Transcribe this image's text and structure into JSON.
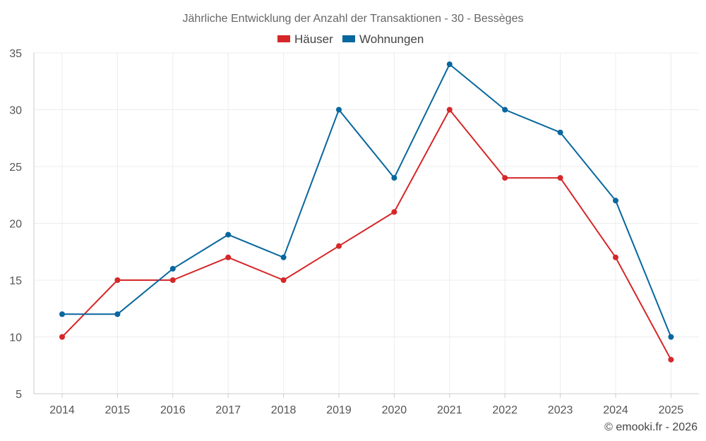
{
  "chart_data": {
    "type": "line",
    "title": "Jährliche Entwicklung der Anzahl der Transaktionen - 30 - Bessèges",
    "xlabel": "",
    "ylabel": "",
    "categories": [
      "2014",
      "2015",
      "2016",
      "2017",
      "2018",
      "2019",
      "2020",
      "2021",
      "2022",
      "2023",
      "2024",
      "2025"
    ],
    "ylim": [
      5,
      35
    ],
    "yticks": [
      5,
      10,
      15,
      20,
      25,
      30,
      35
    ],
    "grid": true,
    "legend_position": "top-center",
    "series": [
      {
        "name": "Häuser",
        "color": "#d62728",
        "values": [
          10,
          15,
          15,
          17,
          15,
          18,
          21,
          30,
          24,
          24,
          17,
          8
        ]
      },
      {
        "name": "Wohnungen",
        "color": "#07679e",
        "values": [
          12,
          12,
          16,
          19,
          17,
          30,
          24,
          34,
          30,
          28,
          22,
          10
        ]
      }
    ],
    "credit": "© emooki.fr - 2026"
  }
}
